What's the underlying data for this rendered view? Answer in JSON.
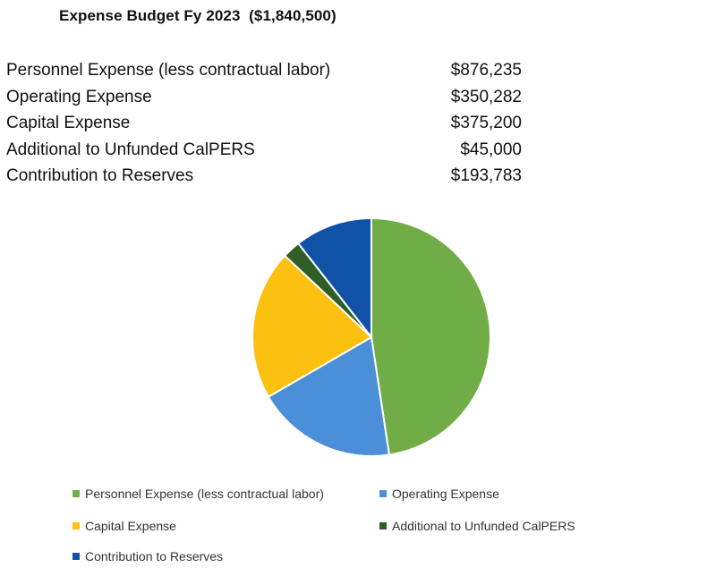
{
  "title": "Expense Budget Fy 2023  ($1,840,500)",
  "rows": [
    {
      "label": "Personnel Expense (less contractual labor)",
      "amount": "$876,235"
    },
    {
      "label": "Operating Expense",
      "amount": "$350,282"
    },
    {
      "label": "Capital Expense",
      "amount": "$375,200"
    },
    {
      "label": "Additional to Unfunded CalPERS",
      "amount": "$45,000"
    },
    {
      "label": "Contribution to Reserves",
      "amount": "$193,783"
    }
  ],
  "chart_data": {
    "type": "pie",
    "title": "",
    "categories": [
      "Personnel Expense (less contractual labor)",
      "Operating Expense",
      "Capital Expense",
      "Additional to Unfunded CalPERS",
      "Contribution to Reserves"
    ],
    "values": [
      876235,
      350282,
      375200,
      45000,
      193783
    ],
    "colors": [
      "#71ad47",
      "#4a8fd8",
      "#fcc010",
      "#2f5f27",
      "#0f52a6"
    ],
    "legend_position": "bottom",
    "grid": false
  }
}
